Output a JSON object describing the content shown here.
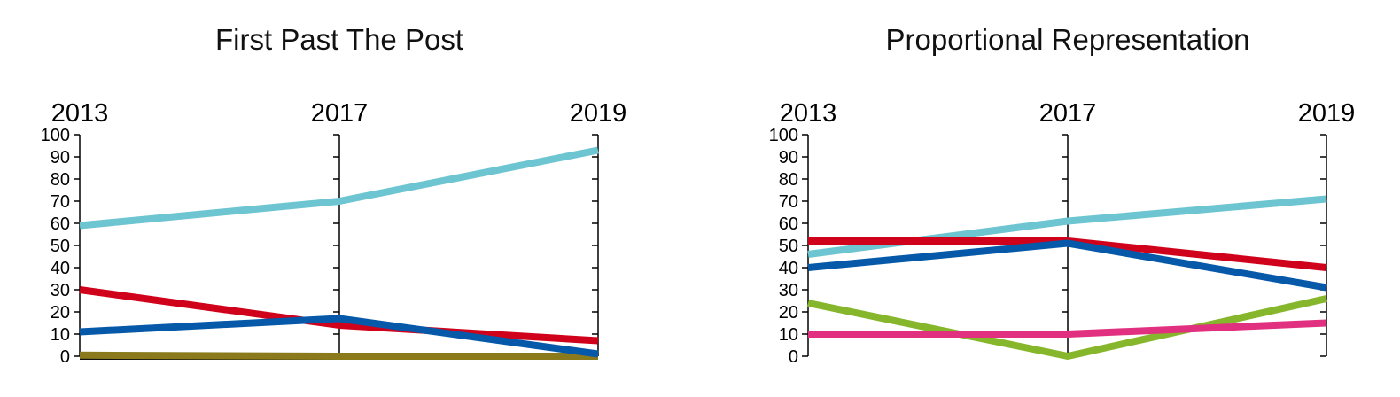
{
  "chart_data": [
    {
      "type": "line",
      "title": "First Past The Post",
      "categories": [
        "2013",
        "2017",
        "2019"
      ],
      "ylim": [
        0,
        100
      ],
      "yticks": [
        0,
        10,
        20,
        30,
        40,
        50,
        60,
        70,
        80,
        90,
        100
      ],
      "grid": false,
      "series": [
        {
          "color": "#111111",
          "values": [
            0,
            0,
            0
          ]
        },
        {
          "color": "#8a7a1c",
          "values": [
            0.5,
            0,
            0
          ]
        },
        {
          "color": "#6cc5d1",
          "values": [
            59,
            70,
            93
          ]
        },
        {
          "color": "#d0021b",
          "values": [
            30,
            14,
            7
          ]
        },
        {
          "color": "#0659a8",
          "values": [
            11,
            17,
            1
          ]
        }
      ]
    },
    {
      "type": "line",
      "title": "Proportional Representation",
      "categories": [
        "2013",
        "2017",
        "2019"
      ],
      "ylim": [
        0,
        100
      ],
      "yticks": [
        0,
        10,
        20,
        30,
        40,
        50,
        60,
        70,
        80,
        90,
        100
      ],
      "grid": false,
      "series": [
        {
          "color": "#6cc5d1",
          "values": [
            46,
            61,
            71
          ]
        },
        {
          "color": "#d0021b",
          "values": [
            52,
            52,
            40
          ]
        },
        {
          "color": "#0659a8",
          "values": [
            40,
            51,
            31
          ]
        },
        {
          "color": "#86b62b",
          "values": [
            24,
            0,
            26
          ]
        },
        {
          "color": "#e0307f",
          "values": [
            10,
            10,
            15
          ]
        }
      ]
    }
  ]
}
